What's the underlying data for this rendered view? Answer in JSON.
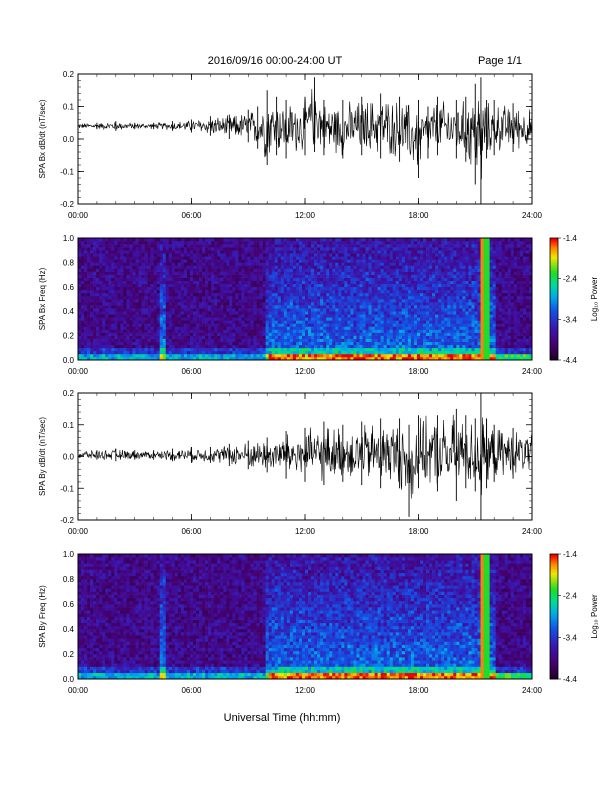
{
  "header": {
    "title": "2016/09/16  00:00-24:00 UT",
    "page": "Page 1/1"
  },
  "footer": {
    "xlabel": "Universal Time (hh:mm)"
  },
  "chart_data": [
    {
      "type": "line",
      "ylabel": "SPA Bx dB/dt (nT/sec)",
      "xlim": [
        0,
        24
      ],
      "ylim": [
        -0.2,
        0.2
      ],
      "yticks": [
        "-0.2",
        "-0.1",
        "0.0",
        "0.1",
        "0.2"
      ],
      "xticks": [
        "00:00",
        "06:00",
        "12:00",
        "18:00",
        "24:00"
      ],
      "x": [
        0,
        1,
        2,
        3,
        4,
        5,
        6,
        7,
        8,
        9,
        9.5,
        10,
        10.5,
        11,
        12,
        12.5,
        13,
        14,
        15,
        16,
        17,
        18,
        18.5,
        19,
        20,
        20.5,
        21,
        21.3,
        21.6,
        22,
        23,
        24
      ],
      "envelope_high": [
        0.05,
        0.05,
        0.055,
        0.05,
        0.05,
        0.055,
        0.06,
        0.07,
        0.075,
        0.09,
        0.1,
        0.15,
        0.13,
        0.12,
        0.13,
        0.19,
        0.12,
        0.12,
        0.13,
        0.14,
        0.13,
        0.12,
        0.1,
        0.13,
        0.12,
        0.13,
        0.17,
        0.19,
        0.12,
        0.12,
        0.11,
        0.1
      ],
      "envelope_low": [
        0.03,
        0.03,
        0.025,
        0.03,
        0.03,
        0.025,
        0.02,
        0.01,
        0.0,
        -0.01,
        -0.03,
        -0.08,
        -0.05,
        -0.06,
        -0.05,
        -0.04,
        -0.05,
        -0.06,
        -0.05,
        -0.06,
        -0.07,
        -0.12,
        -0.06,
        -0.05,
        -0.06,
        -0.07,
        -0.14,
        -0.2,
        -0.06,
        -0.05,
        -0.04,
        -0.03
      ]
    },
    {
      "type": "heatmap",
      "ylabel": "SPA Bx Freq (Hz)",
      "colorbar_label": "Log₁₀ Power",
      "xlim": [
        0,
        24
      ],
      "ylim": [
        0,
        1.0
      ],
      "yticks": [
        "0.0",
        "0.2",
        "0.4",
        "0.6",
        "0.8",
        "1.0"
      ],
      "xticks": [
        "00:00",
        "06:00",
        "12:00",
        "18:00",
        "24:00"
      ],
      "colorbar_ticks": [
        "-1.4",
        "-2.4",
        "-3.4",
        "-4.4"
      ],
      "color_range": [
        -4.4,
        -1.4
      ],
      "vertical_bands_hours": [
        21.3,
        21.6
      ],
      "enhanced_activity_hours": [
        10,
        22
      ]
    },
    {
      "type": "line",
      "ylabel": "SPA By dB/dt (nT/sec)",
      "xlim": [
        0,
        24
      ],
      "ylim": [
        -0.2,
        0.2
      ],
      "yticks": [
        "-0.2",
        "-0.1",
        "0.0",
        "0.1",
        "0.2"
      ],
      "xticks": [
        "00:00",
        "06:00",
        "12:00",
        "18:00",
        "24:00"
      ],
      "x": [
        0,
        1,
        2,
        3,
        4,
        5,
        6,
        7,
        8,
        9,
        10,
        11,
        12,
        13,
        14,
        15,
        16,
        17,
        17.5,
        18,
        19,
        20,
        20.5,
        21,
        21.3,
        21.6,
        22,
        23,
        24
      ],
      "envelope_high": [
        0.02,
        0.02,
        0.025,
        0.02,
        0.02,
        0.025,
        0.03,
        0.03,
        0.04,
        0.05,
        0.06,
        0.08,
        0.09,
        0.11,
        0.1,
        0.11,
        0.12,
        0.12,
        0.1,
        0.13,
        0.13,
        0.15,
        0.13,
        0.12,
        0.2,
        0.12,
        0.1,
        0.09,
        0.08
      ],
      "envelope_low": [
        -0.01,
        -0.01,
        -0.015,
        -0.01,
        -0.01,
        -0.015,
        -0.02,
        -0.02,
        -0.03,
        -0.04,
        -0.05,
        -0.07,
        -0.08,
        -0.09,
        -0.08,
        -0.09,
        -0.1,
        -0.1,
        -0.19,
        -0.1,
        -0.11,
        -0.14,
        -0.1,
        -0.11,
        -0.2,
        -0.1,
        -0.08,
        -0.07,
        -0.06
      ]
    },
    {
      "type": "heatmap",
      "ylabel": "SPA By Freq (Hz)",
      "colorbar_label": "Log₁₀ Power",
      "xlim": [
        0,
        24
      ],
      "ylim": [
        0,
        1.0
      ],
      "yticks": [
        "0.0",
        "0.2",
        "0.4",
        "0.6",
        "0.8",
        "1.0"
      ],
      "xticks": [
        "00:00",
        "06:00",
        "12:00",
        "18:00",
        "24:00"
      ],
      "colorbar_ticks": [
        "-1.4",
        "-2.4",
        "-3.4",
        "-4.4"
      ],
      "color_range": [
        -4.4,
        -1.4
      ],
      "vertical_bands_hours": [
        21.3,
        21.6
      ],
      "enhanced_activity_hours": [
        10,
        22
      ]
    }
  ]
}
